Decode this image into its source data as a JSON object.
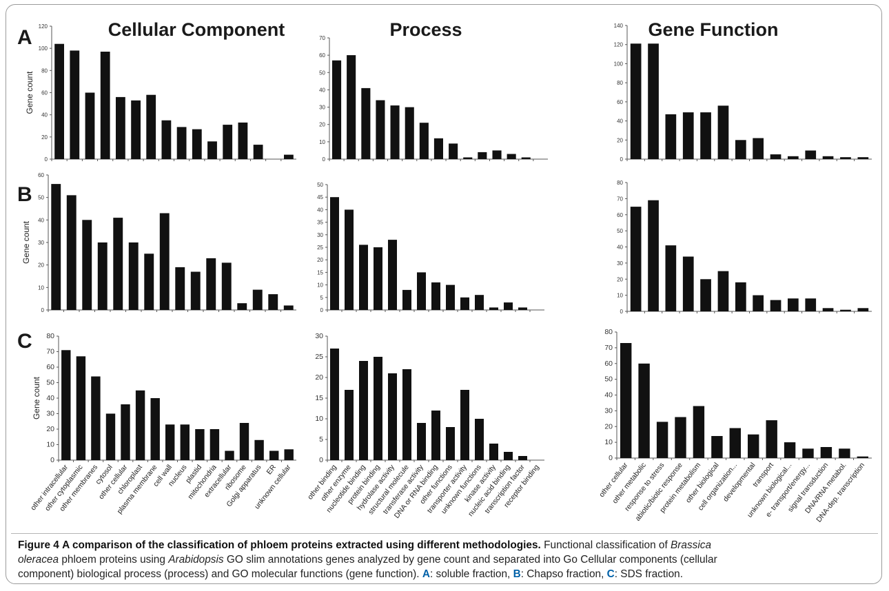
{
  "column_titles": [
    "Cellular Component",
    "Process",
    "Gene Function"
  ],
  "row_labels": [
    "A",
    "B",
    "C"
  ],
  "ylabel": "Gene count",
  "chart_data": [
    {
      "type": "bar",
      "row": "A",
      "column": "Cellular Component",
      "ylabel": "Gene count",
      "ylim": [
        0,
        120
      ],
      "ticks": [
        0,
        20,
        40,
        60,
        80,
        100,
        120
      ],
      "categories": [
        "other intracellular",
        "other cytoplasmic",
        "other membranes",
        "cytosol",
        "other cellular",
        "chloroplast",
        "plasma membrane",
        "cell wall",
        "nucleus",
        "plastid",
        "mitochondria",
        "extracellular",
        "ribosome",
        "Golgi apparatus",
        "ER",
        "unknown cellular"
      ],
      "values": [
        104,
        98,
        60,
        97,
        56,
        53,
        58,
        35,
        29,
        27,
        16,
        31,
        33,
        13,
        0,
        4
      ]
    },
    {
      "type": "bar",
      "row": "A",
      "column": "Process",
      "ylim": [
        0,
        70
      ],
      "ticks": [
        0,
        10,
        20,
        30,
        40,
        50,
        60,
        70
      ],
      "categories": [
        "other binding",
        "other enzyme",
        "nucleotide binding",
        "protein binding",
        "hydrolase activity",
        "structural molecule",
        "transferase activity",
        "DNA or RNA binding",
        "other functions",
        "transporter activity",
        "unknown functions",
        "kinase activity",
        "nucleic acid binding",
        "transcription factor",
        "receptor binding"
      ],
      "values": [
        57,
        60,
        41,
        34,
        31,
        30,
        21,
        12,
        9,
        1,
        4,
        5,
        3,
        1,
        0
      ]
    },
    {
      "type": "bar",
      "row": "A",
      "column": "Gene Function",
      "ylim": [
        0,
        140
      ],
      "ticks": [
        0,
        20,
        40,
        60,
        80,
        100,
        120,
        140
      ],
      "categories": [
        "other cellular",
        "other metabolic",
        "response to stress",
        "abiotic/biotic response",
        "protein metabolism",
        "other biological",
        "cell organization...",
        "developmental",
        "transport",
        "unknown biological...",
        "e- transport/energy...",
        "signal transduction",
        "DNA/RNA metabol.",
        "DNA-dep. transcription"
      ],
      "values": [
        121,
        121,
        47,
        49,
        49,
        56,
        20,
        22,
        5,
        3,
        9,
        3,
        2,
        2
      ]
    },
    {
      "type": "bar",
      "row": "B",
      "column": "Cellular Component",
      "ylabel": "Gene count",
      "ylim": [
        0,
        60
      ],
      "ticks": [
        0,
        10,
        20,
        30,
        40,
        50,
        60
      ],
      "categories": [
        "other intracellular",
        "other cytoplasmic",
        "other membranes",
        "cytosol",
        "other cellular",
        "chloroplast",
        "plasma membrane",
        "cell wall",
        "nucleus",
        "plastid",
        "mitochondria",
        "extracellular",
        "ribosome",
        "Golgi apparatus",
        "ER",
        "unknown cellular"
      ],
      "values": [
        56,
        51,
        40,
        30,
        41,
        30,
        25,
        43,
        19,
        17,
        23,
        21,
        3,
        9,
        7,
        2
      ]
    },
    {
      "type": "bar",
      "row": "B",
      "column": "Process",
      "ylim": [
        0,
        50
      ],
      "ticks": [
        0,
        5,
        10,
        15,
        20,
        25,
        30,
        35,
        40,
        45,
        50
      ],
      "categories": [
        "other binding",
        "other enzyme",
        "nucleotide binding",
        "protein binding",
        "hydrolase activity",
        "structural molecule",
        "transferase activity",
        "DNA or RNA binding",
        "other functions",
        "transporter activity",
        "unknown functions",
        "kinase activity",
        "nucleic acid binding",
        "transcription factor",
        "receptor binding"
      ],
      "values": [
        45,
        40,
        26,
        25,
        28,
        8,
        15,
        11,
        10,
        5,
        6,
        1,
        3,
        1,
        0
      ]
    },
    {
      "type": "bar",
      "row": "B",
      "column": "Gene Function",
      "ylim": [
        0,
        80
      ],
      "ticks": [
        0,
        10,
        20,
        30,
        40,
        50,
        60,
        70,
        80
      ],
      "categories": [
        "other cellular",
        "other metabolic",
        "response to stress",
        "abiotic/biotic response",
        "protein metabolism",
        "other biological",
        "cell organization...",
        "developmental",
        "transport",
        "unknown biological...",
        "e- transport/energy...",
        "signal transduction",
        "DNA/RNA metabol.",
        "DNA-dep. transcription"
      ],
      "values": [
        65,
        69,
        41,
        34,
        20,
        25,
        18,
        10,
        7,
        8,
        8,
        2,
        1,
        2
      ]
    },
    {
      "type": "bar",
      "row": "C",
      "column": "Cellular Component",
      "ylabel": "Gene count",
      "ylim": [
        0,
        80
      ],
      "ticks": [
        0,
        10,
        20,
        30,
        40,
        50,
        60,
        70,
        80
      ],
      "categories": [
        "other intracellular",
        "other cytoplasmic",
        "other membranes",
        "cytosol",
        "other cellular",
        "chloroplast",
        "plasma membrane",
        "cell wall",
        "nucleus",
        "plastid",
        "mitochondria",
        "extracellular",
        "ribosome",
        "Golgi apparatus",
        "ER",
        "unknown cellular"
      ],
      "values": [
        71,
        67,
        54,
        30,
        36,
        45,
        40,
        23,
        23,
        20,
        20,
        6,
        24,
        13,
        6,
        7
      ]
    },
    {
      "type": "bar",
      "row": "C",
      "column": "Process",
      "ylim": [
        0,
        30
      ],
      "ticks": [
        0,
        5,
        10,
        15,
        20,
        25,
        30
      ],
      "categories": [
        "other binding",
        "other enzyme",
        "nucleotide binding",
        "protein binding",
        "hydrolase activity",
        "structural molecule",
        "transferase activity",
        "DNA or RNA binding",
        "other functions",
        "transporter activity",
        "unknown functions",
        "kinase activity",
        "nucleic acid binding",
        "transcription factor",
        "receptor binding"
      ],
      "values": [
        27,
        17,
        24,
        25,
        21,
        22,
        9,
        12,
        8,
        17,
        10,
        4,
        2,
        1,
        0
      ]
    },
    {
      "type": "bar",
      "row": "C",
      "column": "Gene Function",
      "ylim": [
        0,
        80
      ],
      "ticks": [
        0,
        10,
        20,
        30,
        40,
        50,
        60,
        70,
        80
      ],
      "categories": [
        "other cellular",
        "other metabolic",
        "response to stress",
        "abiotic/biotic response",
        "protein metabolism",
        "other biological",
        "cell organization...",
        "developmental",
        "transport",
        "unknown biological...",
        "e- transport/energy...",
        "signal transduction",
        "DNA/RNA metabol.",
        "DNA-dep. transcription"
      ],
      "values": [
        73,
        60,
        23,
        26,
        33,
        14,
        19,
        15,
        24,
        10,
        6,
        7,
        6,
        1
      ]
    }
  ],
  "caption": {
    "figure_label": "Figure 4",
    "title": "A comparison of the classification of phloem proteins extracted using different methodologies.",
    "line1_a": "Functional classification of ",
    "line1_species": "Brassica",
    "line2_species": "oleracea",
    "line2_a": " phloem proteins using ",
    "line2_genus": "Arabidopsis",
    "line2_b": " GO slim annotations genes analyzed by gene count and separated into Go Cellular components (cellular",
    "line3_a": "component) biological process (process) and GO molecular functions (gene function). ",
    "key_a": "A",
    "text_a": ": soluble fraction, ",
    "key_b": "B",
    "text_b": ": Chapso fraction, ",
    "key_c": "C",
    "text_c": ": SDS fraction."
  }
}
